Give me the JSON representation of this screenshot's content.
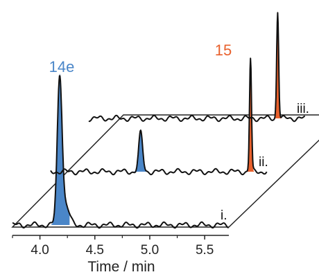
{
  "chart_data": {
    "type": "line",
    "style": "3D stacked (waterfall) chromatograms",
    "xlabel": "Time / min",
    "x_ticks": [
      4.0,
      4.5,
      5.0,
      5.5
    ],
    "x_tick_labels": [
      "4.0",
      "4.5",
      "5.0",
      "5.5"
    ],
    "xlim": [
      3.75,
      5.72
    ],
    "traces": [
      {
        "label": "i.",
        "peaks": [
          {
            "x": 4.18,
            "height": 1.0,
            "fill": "blue"
          }
        ]
      },
      {
        "label": "ii.",
        "peaks": [
          {
            "x": 4.57,
            "height": 0.26,
            "fill": "blue"
          },
          {
            "x": 5.57,
            "height": 0.76,
            "fill": "orange"
          }
        ]
      },
      {
        "label": "iii.",
        "peaks": [
          {
            "x": 5.47,
            "height": 0.72,
            "fill": "orange"
          }
        ]
      }
    ],
    "annotations": [
      {
        "text": "14e",
        "color": "#4a86c8"
      },
      {
        "text": "15",
        "color": "#e8602c"
      }
    ],
    "colors": {
      "blue": "#4a86c8",
      "orange": "#e8602c",
      "line": "#111111"
    },
    "grid": false
  }
}
